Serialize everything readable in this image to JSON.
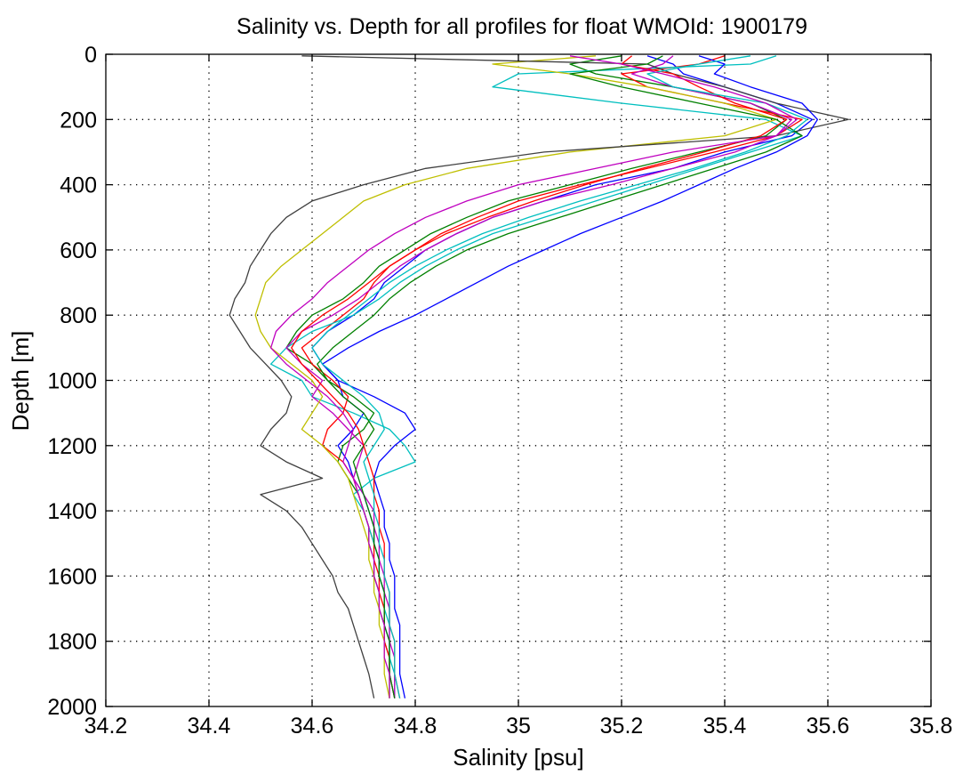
{
  "chart_data": {
    "type": "line",
    "title": "Salinity vs. Depth for all profiles for float WMOId: 1900179",
    "xlabel": "Salinity [psu]",
    "ylabel": "Depth [m]",
    "xlim": [
      34.2,
      35.8
    ],
    "ylim": [
      0,
      2000
    ],
    "y_reversed": true,
    "grid": true,
    "legend": "none",
    "x_ticks": [
      34.2,
      34.4,
      34.6,
      34.8,
      35.0,
      35.2,
      35.4,
      35.6,
      35.8
    ],
    "x_tick_labels": [
      "34.2",
      "34.4",
      "34.6",
      "34.8",
      "35",
      "35.2",
      "35.4",
      "35.6",
      "35.8"
    ],
    "y_ticks": [
      0,
      200,
      400,
      600,
      800,
      1000,
      1200,
      1400,
      1600,
      1800,
      2000
    ],
    "y_tick_labels": [
      "0",
      "200",
      "400",
      "600",
      "800",
      "1000",
      "1200",
      "1400",
      "1600",
      "1800",
      "2000"
    ],
    "colors": [
      "#0000ff",
      "#008000",
      "#ff0000",
      "#00bfbf",
      "#bf00bf",
      "#bfbf00",
      "#404040"
    ],
    "depths": [
      5,
      30,
      60,
      100,
      150,
      200,
      250,
      300,
      350,
      400,
      450,
      500,
      550,
      600,
      650,
      700,
      750,
      800,
      850,
      900,
      950,
      1000,
      1050,
      1100,
      1150,
      1200,
      1250,
      1300,
      1350,
      1400,
      1450,
      1500,
      1550,
      1600,
      1650,
      1700,
      1750,
      1800,
      1850,
      1900,
      1975
    ],
    "series": [
      {
        "salinity": [
          35.25,
          35.3,
          35.32,
          35.4,
          35.5,
          35.57,
          35.53,
          35.4,
          35.3,
          35.15,
          35.05,
          34.95,
          34.88,
          34.82,
          34.78,
          34.74,
          34.72,
          34.68,
          34.63,
          34.6,
          34.62,
          34.65,
          34.66,
          34.7,
          34.68,
          34.65,
          34.67,
          34.68,
          34.7,
          34.71,
          34.72,
          34.72,
          34.73,
          34.73,
          34.74,
          34.74,
          34.74,
          34.75,
          34.75,
          34.75,
          34.76
        ]
      },
      {
        "salinity": [
          35.2,
          35.1,
          35.15,
          35.3,
          35.45,
          35.52,
          35.48,
          35.35,
          35.22,
          35.1,
          34.98,
          34.9,
          34.83,
          34.78,
          34.73,
          34.7,
          34.66,
          34.6,
          34.57,
          34.55,
          34.6,
          34.63,
          34.68,
          34.72,
          34.7,
          34.66,
          34.65,
          34.67,
          34.69,
          34.7,
          34.71,
          34.71,
          34.72,
          34.72,
          34.73,
          34.73,
          34.74,
          34.74,
          34.75,
          34.75,
          34.75
        ]
      },
      {
        "salinity": [
          35.4,
          35.35,
          35.2,
          35.25,
          35.4,
          35.55,
          35.5,
          35.38,
          35.25,
          35.12,
          35.0,
          34.92,
          34.85,
          34.8,
          34.75,
          34.72,
          34.7,
          34.66,
          34.62,
          34.58,
          34.6,
          34.64,
          34.67,
          34.66,
          34.63,
          34.62,
          34.66,
          34.68,
          34.69,
          34.7,
          34.71,
          34.72,
          34.72,
          34.73,
          34.73,
          34.74,
          34.74,
          34.74,
          34.75,
          34.75,
          34.76
        ]
      },
      {
        "salinity": [
          35.5,
          35.45,
          35.0,
          34.95,
          35.2,
          35.48,
          35.55,
          35.45,
          35.35,
          35.25,
          35.15,
          35.05,
          34.95,
          34.88,
          34.82,
          34.77,
          34.73,
          34.68,
          34.6,
          34.55,
          34.52,
          34.58,
          34.6,
          34.68,
          34.75,
          34.78,
          34.8,
          34.72,
          34.68,
          34.7,
          34.71,
          34.72,
          34.73,
          34.73,
          34.74,
          34.74,
          34.75,
          34.75,
          34.75,
          34.76,
          34.76
        ]
      },
      {
        "salinity": [
          35.3,
          35.28,
          35.22,
          35.3,
          35.45,
          35.53,
          35.5,
          35.42,
          35.3,
          35.18,
          35.05,
          34.95,
          34.88,
          34.82,
          34.77,
          34.73,
          34.69,
          34.64,
          34.58,
          34.55,
          34.58,
          34.62,
          34.6,
          34.64,
          34.67,
          34.7,
          34.69,
          34.68,
          34.7,
          34.72,
          34.72,
          34.73,
          34.73,
          34.74,
          34.74,
          34.75,
          34.75,
          34.75,
          34.76,
          34.76,
          34.76
        ]
      },
      {
        "salinity": [
          35.15,
          34.95,
          35.1,
          35.25,
          35.4,
          35.5,
          35.4,
          35.1,
          34.9,
          34.78,
          34.7,
          34.66,
          34.62,
          34.58,
          34.54,
          34.51,
          34.5,
          34.49,
          34.5,
          34.52,
          34.56,
          34.6,
          34.62,
          34.6,
          34.58,
          34.62,
          34.65,
          34.67,
          34.68,
          34.69,
          34.7,
          34.71,
          34.71,
          34.72,
          34.72,
          34.73,
          34.73,
          34.74,
          34.74,
          34.74,
          34.75
        ]
      },
      {
        "salinity": [
          34.58,
          35.25,
          35.3,
          35.4,
          35.5,
          35.64,
          35.5,
          35.05,
          34.82,
          34.7,
          34.6,
          34.55,
          34.52,
          34.5,
          34.48,
          34.47,
          34.45,
          34.44,
          34.46,
          34.48,
          34.51,
          34.54,
          34.56,
          34.55,
          34.52,
          34.5,
          34.55,
          34.62,
          34.5,
          34.55,
          34.58,
          34.6,
          34.62,
          34.64,
          34.65,
          34.67,
          34.68,
          34.69,
          34.7,
          34.71,
          34.72
        ]
      },
      {
        "salinity": [
          35.35,
          35.4,
          35.38,
          35.45,
          35.55,
          35.58,
          35.56,
          35.5,
          35.42,
          35.35,
          35.28,
          35.2,
          35.12,
          35.05,
          34.98,
          34.92,
          34.86,
          34.8,
          34.73,
          34.67,
          34.62,
          34.65,
          34.72,
          34.78,
          34.8,
          34.76,
          34.73,
          34.72,
          34.73,
          34.74,
          34.74,
          34.75,
          34.75,
          34.76,
          34.76,
          34.76,
          34.77,
          34.77,
          34.77,
          34.77,
          34.78
        ]
      },
      {
        "salinity": [
          35.28,
          35.25,
          35.1,
          35.2,
          35.35,
          35.5,
          35.55,
          35.48,
          35.38,
          35.28,
          35.18,
          35.08,
          34.98,
          34.9,
          34.84,
          34.79,
          34.75,
          34.72,
          34.68,
          34.64,
          34.61,
          34.63,
          34.66,
          34.7,
          34.72,
          34.7,
          34.68,
          34.69,
          34.7,
          34.71,
          34.72,
          34.72,
          34.73,
          34.73,
          34.74,
          34.74,
          34.74,
          34.75,
          34.75,
          34.75,
          34.76
        ]
      },
      {
        "salinity": [
          35.22,
          35.2,
          35.3,
          35.35,
          35.42,
          35.52,
          35.47,
          35.36,
          35.24,
          35.13,
          35.03,
          34.94,
          34.86,
          34.8,
          34.75,
          34.71,
          34.67,
          34.62,
          34.58,
          34.56,
          34.58,
          34.61,
          34.64,
          34.67,
          34.69,
          34.7,
          34.71,
          34.72,
          34.72,
          34.73,
          34.73,
          34.74,
          34.74,
          34.74,
          34.75,
          34.75,
          34.75,
          34.76,
          34.76,
          34.76,
          34.77
        ]
      },
      {
        "salinity": [
          35.45,
          35.35,
          35.25,
          35.3,
          35.48,
          35.56,
          35.52,
          35.44,
          35.34,
          35.23,
          35.12,
          35.02,
          34.93,
          34.86,
          34.8,
          34.75,
          34.71,
          34.67,
          34.63,
          34.6,
          34.62,
          34.66,
          34.7,
          34.73,
          34.74,
          34.72,
          34.7,
          34.71,
          34.72,
          34.72,
          34.73,
          34.73,
          34.74,
          34.74,
          34.75,
          34.75,
          34.75,
          34.76,
          34.76,
          34.76,
          34.77
        ]
      },
      {
        "salinity": [
          35.1,
          35.2,
          35.28,
          35.38,
          35.48,
          35.54,
          35.5,
          35.3,
          35.15,
          35.0,
          34.9,
          34.82,
          34.76,
          34.71,
          34.67,
          34.63,
          34.6,
          34.56,
          34.53,
          34.52,
          34.55,
          34.59,
          34.63,
          34.66,
          34.68,
          34.67,
          34.66,
          34.68,
          34.69,
          34.7,
          34.71,
          34.71,
          34.72,
          34.72,
          34.73,
          34.73,
          34.74,
          34.74,
          34.74,
          34.75,
          34.75
        ]
      }
    ]
  }
}
